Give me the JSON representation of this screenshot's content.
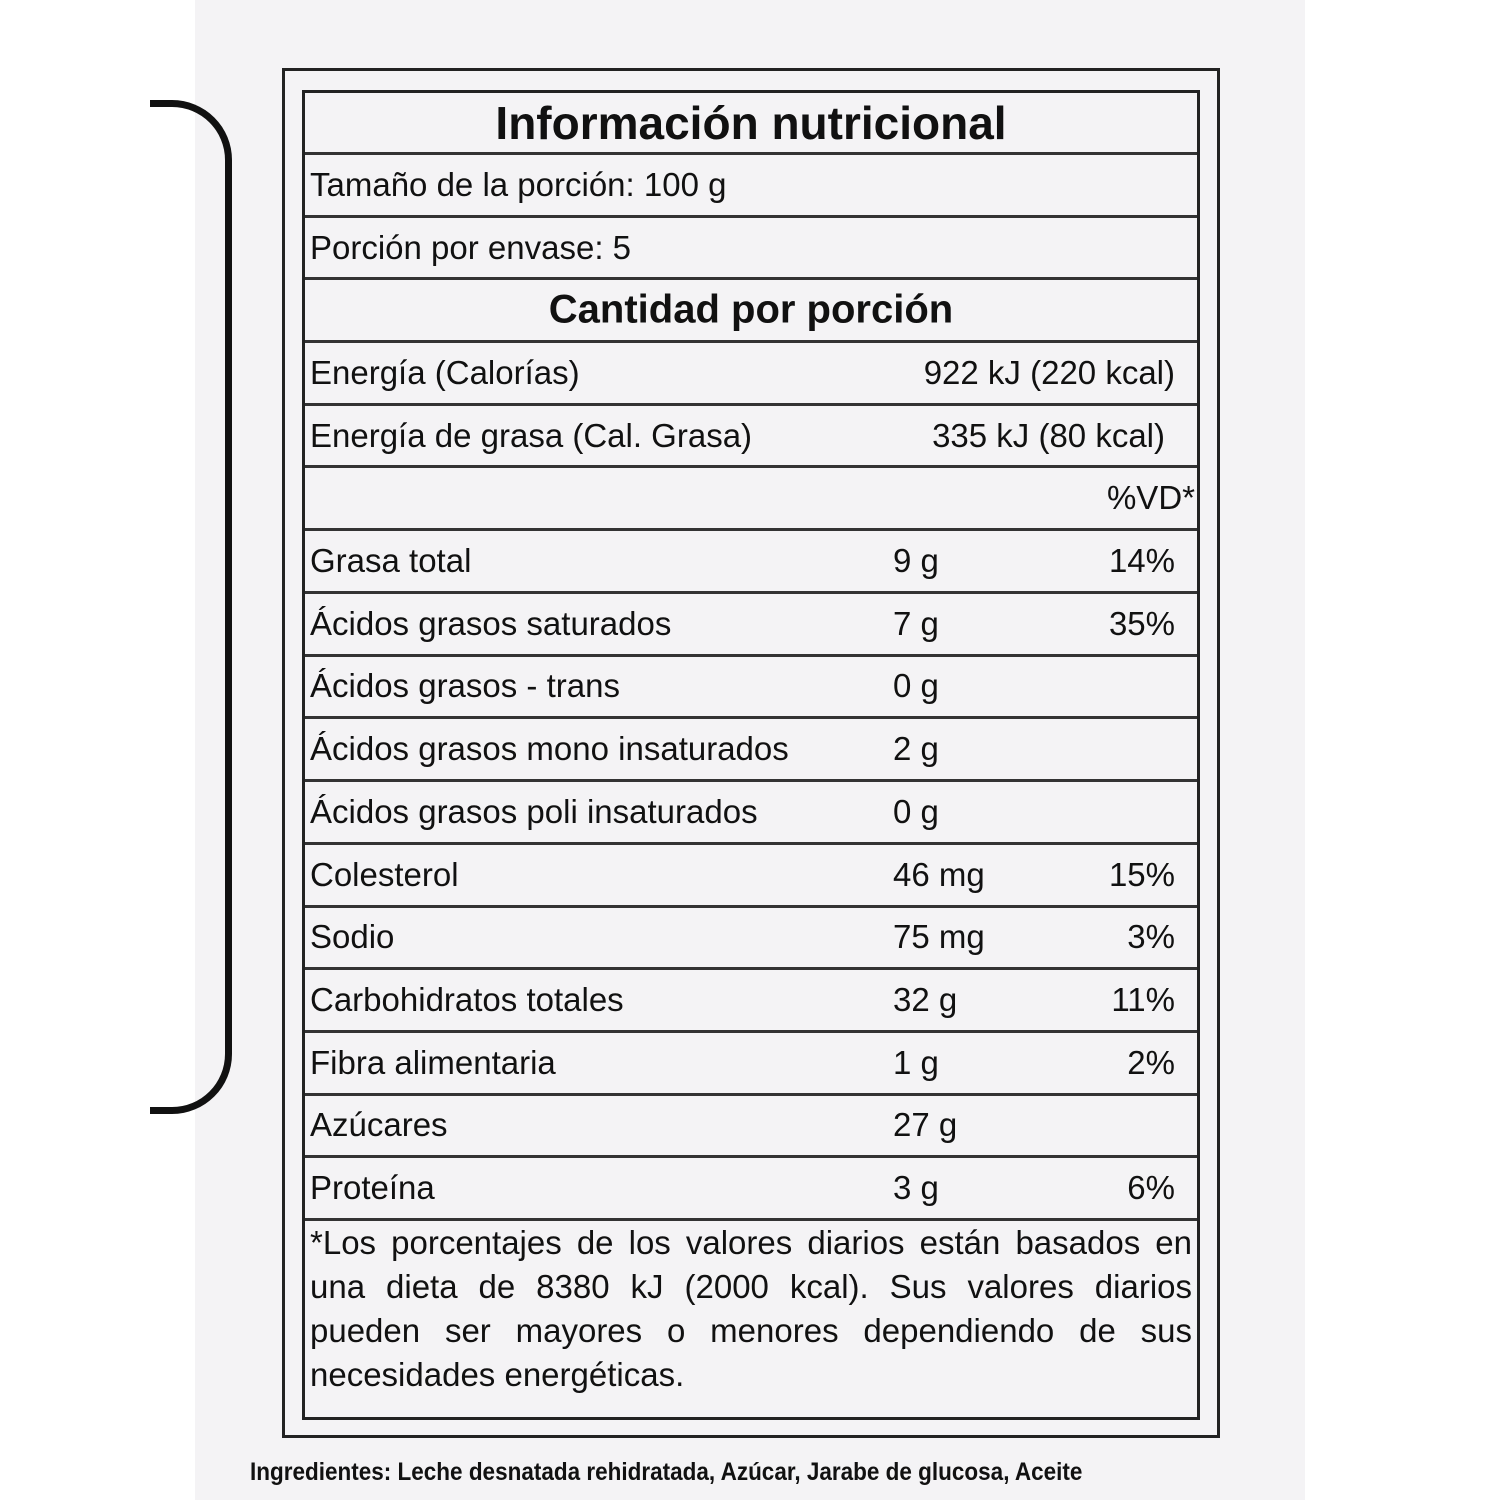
{
  "label": {
    "title": "Información nutricional",
    "serving_size": "Tamaño de la porción: 100 g",
    "servings_per_container": "Porción por envase: 5",
    "amount_header": "Cantidad por porción",
    "energy": {
      "name": "Energía (Calorías)",
      "value": "922 kJ (220 kcal)"
    },
    "fat_energy": {
      "name": "Energía de grasa (Cal. Grasa)",
      "value": "335 kJ (80 kcal)"
    },
    "dv_header": "%VD*",
    "nutrients": [
      {
        "name": "Grasa total",
        "value": "9 g",
        "dv": "14%"
      },
      {
        "name": "Ácidos grasos saturados",
        "value": "7 g",
        "dv": "35%"
      },
      {
        "name": "Ácidos grasos - trans",
        "value": "0 g",
        "dv": ""
      },
      {
        "name": "Ácidos grasos mono insaturados",
        "value": "2 g",
        "dv": ""
      },
      {
        "name": "Ácidos grasos poli insaturados",
        "value": "0 g",
        "dv": ""
      },
      {
        "name": "Colesterol",
        "value": "46 mg",
        "dv": "15%"
      },
      {
        "name": "Sodio",
        "value": "75 mg",
        "dv": "3%"
      },
      {
        "name": "Carbohidratos totales",
        "value": "32 g",
        "dv": "11%"
      },
      {
        "name": "Fibra alimentaria",
        "value": "1 g",
        "dv": "2%"
      },
      {
        "name": "Azúcares",
        "value": "27 g",
        "dv": ""
      },
      {
        "name": "Proteína",
        "value": "3 g",
        "dv": "6%"
      }
    ],
    "footnote": "*Los porcentajes de los valores diarios están basados en una dieta de 8380 kJ (2000 kcal). Sus valores diarios pueden ser mayores o menores dependiendo de sus necesidades energéticas."
  },
  "ingredients": {
    "label": "Ingredientes:",
    "text": " Leche desnatada rehidratada, Azúcar, Jarabe de glucosa, Aceite"
  }
}
